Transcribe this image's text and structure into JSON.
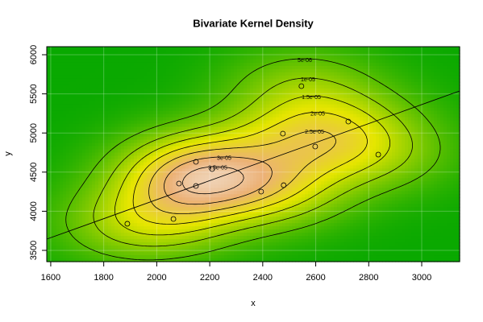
{
  "chart_data": {
    "type": "density2d",
    "title": "Bivariate Kernel Density",
    "x_label": "x",
    "y_label": "y",
    "x": [
      1889,
      2063,
      2084,
      2148,
      2148,
      2209,
      2394,
      2479,
      2476,
      2546,
      2598,
      2723,
      2836
    ],
    "y": [
      3840,
      3901,
      4354,
      4323,
      4632,
      4539,
      4251,
      4333,
      4992,
      5599,
      4827,
      5146,
      4724
    ],
    "regression": {
      "x": [
        1585,
        3143
      ],
      "y": [
        3644,
        5537
      ]
    },
    "contour_levels": [
      {
        "value": 5e-06,
        "label": "5e-06"
      },
      {
        "value": 1e-05,
        "label": "1e-05"
      },
      {
        "value": 1.5e-05,
        "label": "1.5e-05"
      },
      {
        "value": 2e-05,
        "label": "2e-05"
      },
      {
        "value": 2.5e-05,
        "label": "2.5e-05"
      },
      {
        "value": 3e-05,
        "label": "3e-05"
      },
      {
        "value": 3.5e-05,
        "label": "3.5e-05"
      }
    ],
    "zmax": 3.8e-05,
    "xlim": [
      1585,
      3143
    ],
    "ylim": [
      3356,
      6103
    ],
    "xticks": [
      1600,
      1800,
      2000,
      2200,
      2400,
      2600,
      2800,
      3000
    ],
    "yticks": [
      3500,
      4000,
      4500,
      5000,
      5500,
      6000
    ],
    "grid": true
  }
}
